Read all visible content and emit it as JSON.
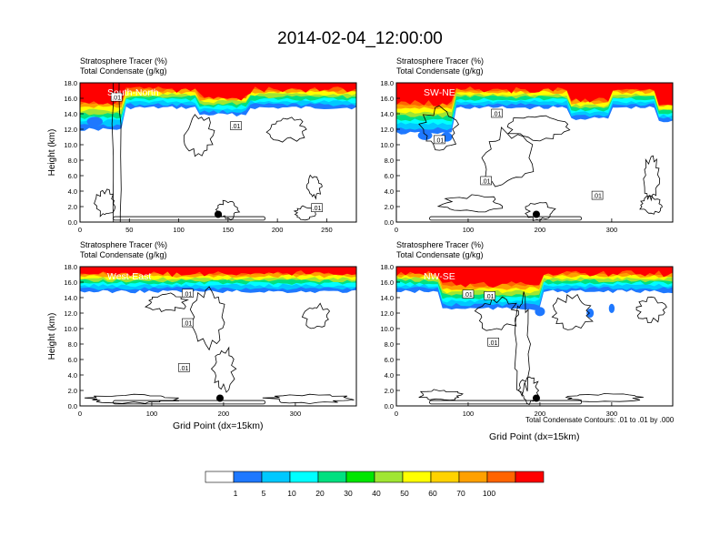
{
  "title": "2014-02-04_12:00:00",
  "note": "Total Condensate Contours: .01 to .01 by .000",
  "colors": [
    "#ffffff",
    "#1e78ff",
    "#00c8ff",
    "#00ffff",
    "#00e080",
    "#00e600",
    "#a0e632",
    "#ffff00",
    "#ffd200",
    "#ffa000",
    "#ff6400",
    "#ff0000"
  ],
  "colorbar": {
    "labels": [
      "1",
      "5",
      "10",
      "20",
      "30",
      "40",
      "50",
      "60",
      "70",
      "100"
    ]
  },
  "chart_data": [
    {
      "type": "heatmap",
      "name": "South-North",
      "var1": "Stratosphere Tracer   (%)",
      "var2": "Total Condensate   (g/kg)",
      "ylabel": "Height (km)",
      "xlabel": "",
      "xlim": [
        0,
        280
      ],
      "xticks": [
        "0",
        "50",
        "100",
        "150",
        "200",
        "250"
      ],
      "yticks": [
        "0.0",
        "2.0",
        "4.0",
        "6.0",
        "8.0",
        "10.0",
        "12.0",
        "14.0",
        "16.0",
        "18.0"
      ],
      "ylim": [
        0,
        18
      ],
      "contour_labels": [
        ".01",
        ".01",
        ".01"
      ],
      "marker": {
        "x": 140,
        "y": 1.0
      }
    },
    {
      "type": "heatmap",
      "name": "SW-NE",
      "var1": "Stratosphere Tracer   (%)",
      "var2": "Total Condensate   (g/kg)",
      "ylabel": "",
      "xlabel": "",
      "xlim": [
        0,
        385
      ],
      "xticks": [
        "0",
        "100",
        "200",
        "300"
      ],
      "yticks": [
        "0.0",
        "2.0",
        "4.0",
        "6.0",
        "8.0",
        "10.0",
        "12.0",
        "14.0",
        "16.0",
        "18.0"
      ],
      "ylim": [
        0,
        18
      ],
      "contour_labels": [
        ".01",
        ".01",
        ".01",
        ".01"
      ],
      "marker": {
        "x": 195,
        "y": 1.0
      }
    },
    {
      "type": "heatmap",
      "name": "West-East",
      "var1": "Stratosphere Tracer   (%)",
      "var2": "Total Condensate   (g/kg)",
      "ylabel": "Height (km)",
      "xlabel": "Grid Point (dx=15km)",
      "xlim": [
        0,
        385
      ],
      "xticks": [
        "0",
        "100",
        "200",
        "300"
      ],
      "yticks": [
        "0.0",
        "2.0",
        "4.0",
        "6.0",
        "8.0",
        "10.0",
        "12.0",
        "14.0",
        "16.0",
        "18.0"
      ],
      "ylim": [
        0,
        18
      ],
      "contour_labels": [
        ".01",
        ".01",
        ".01"
      ],
      "marker": {
        "x": 195,
        "y": 1.0
      }
    },
    {
      "type": "heatmap",
      "name": "NW-SE",
      "var1": "Stratosphere Tracer   (%)",
      "var2": "Total Condensate   (g/kg)",
      "ylabel": "",
      "xlabel": "Grid Point (dx=15km)",
      "xlim": [
        0,
        385
      ],
      "xticks": [
        "0",
        "100",
        "200",
        "300"
      ],
      "yticks": [
        "0.0",
        "2.0",
        "4.0",
        "6.0",
        "8.0",
        "10.0",
        "12.0",
        "14.0",
        "16.0",
        "18.0"
      ],
      "ylim": [
        0,
        18
      ],
      "contour_labels": [
        ".01",
        ".01",
        ".01"
      ],
      "marker": {
        "x": 195,
        "y": 1.0
      }
    }
  ]
}
